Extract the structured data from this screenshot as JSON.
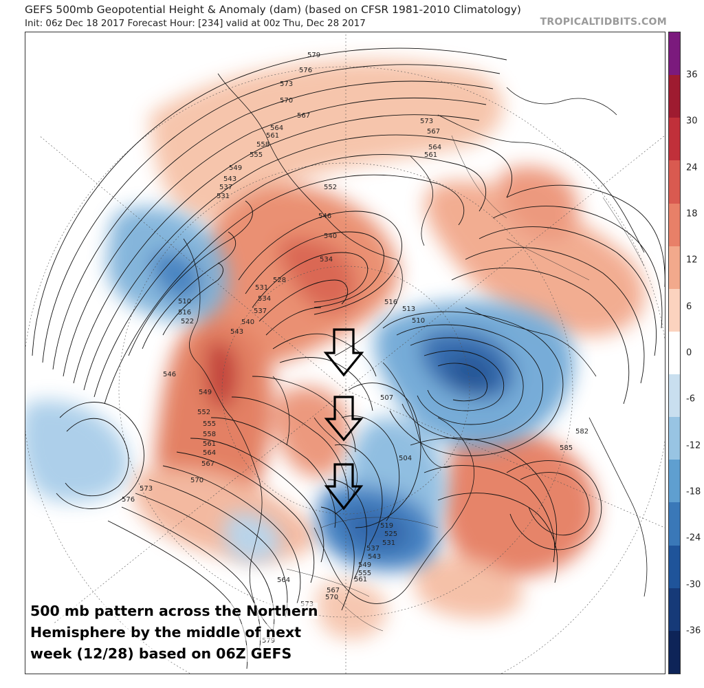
{
  "header": {
    "title": "GEFS 500mb Geopotential Height & Anomaly (dam) (based on CFSR 1981-2010 Climatology)",
    "subtitle": "Init: 06z Dec 18 2017   Forecast Hour: [234]   valid at 00z Thu, Dec 28 2017",
    "site_credit": "TROPICALTIDBITS.COM"
  },
  "colorbar": {
    "ticks": [
      "36",
      "30",
      "24",
      "18",
      "12",
      "6",
      "0",
      "-6",
      "-12",
      "-18",
      "-24",
      "-30",
      "-36"
    ],
    "colors": [
      "#7b1a7d",
      "#9e1b30",
      "#c0303a",
      "#d95a50",
      "#e88068",
      "#f2a98c",
      "#fbd3bf",
      "#ffffff",
      "#c9dfef",
      "#98c4e3",
      "#5f9fd0",
      "#3a78b8",
      "#1f549a",
      "#163a78",
      "#0e2458"
    ]
  },
  "contour_labels": [
    "579",
    "576",
    "573",
    "570",
    "567",
    "564",
    "561",
    "558",
    "555",
    "549",
    "543",
    "537",
    "531",
    "552",
    "546",
    "540",
    "534",
    "528",
    "531",
    "534",
    "537",
    "540",
    "543",
    "546",
    "549",
    "552",
    "555",
    "558",
    "561",
    "564",
    "567",
    "570",
    "573",
    "576",
    "510",
    "516",
    "522",
    "516",
    "513",
    "510",
    "507",
    "504",
    "519",
    "525",
    "531",
    "537",
    "543",
    "549",
    "555",
    "561",
    "564",
    "567",
    "570",
    "573",
    "579",
    "582",
    "585",
    "573",
    "567",
    "564",
    "561"
  ],
  "annotations": {
    "arrows": [
      "down-arrow-1",
      "down-arrow-2",
      "down-arrow-3"
    ],
    "caption_lines": [
      "500 mb pattern across the Northern",
      "Hemisphere by the middle of next",
      "week (12/28) based on 06Z GEFS"
    ]
  }
}
